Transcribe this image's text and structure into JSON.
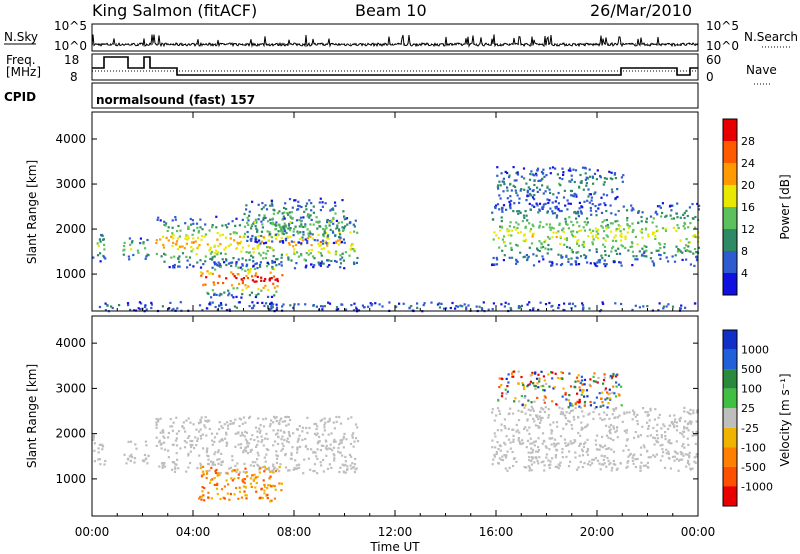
{
  "header": {
    "station": "King Salmon (fitACF)",
    "beam": "Beam 10",
    "date": "26/Mar/2010"
  },
  "summary_panels": {
    "nsky": {
      "left_label": "N.Sky",
      "right_label": "N.Search",
      "left_ticks": [
        "10^5",
        "10^0"
      ],
      "right_ticks": [
        "10^5",
        "10^0"
      ]
    },
    "freq": {
      "left_label_line1": "Freq.",
      "left_label_line2": "[MHz]",
      "left_ticks": [
        "18",
        "8"
      ],
      "right_label": "Nave",
      "right_ticks": [
        "60",
        "0"
      ]
    },
    "cpid": {
      "label": "CPID",
      "value_text": "normalsound (fast) 157"
    }
  },
  "colors": {
    "power_scale": [
      "#1010e0",
      "#2f5bd0",
      "#2e8a64",
      "#5cc05c",
      "#e8e800",
      "#ff9a00",
      "#ff5a00",
      "#e80000"
    ],
    "velocity_scale": [
      "#1030c8",
      "#2060d8",
      "#2a8a3c",
      "#40c040",
      "#bebebe",
      "#f0b400",
      "#ff8000",
      "#ff5000",
      "#e80000"
    ],
    "ground_scatter": "#bebebe"
  },
  "chart_data": [
    {
      "type": "heatmap",
      "name": "power",
      "ylabel": "Slant Range [km]",
      "xlabel": "",
      "x_ticks": [
        "00:00",
        "04:00",
        "08:00",
        "12:00",
        "16:00",
        "20:00",
        "00:00"
      ],
      "x_range_hours": [
        0,
        24
      ],
      "y_ticks": [
        1000,
        2000,
        3000,
        4000
      ],
      "ylim": [
        180,
        4600
      ],
      "colorbar": {
        "label": "Power [dB]",
        "ticks": [
          4,
          8,
          12,
          16,
          20,
          24,
          28
        ],
        "range": [
          0,
          32
        ]
      },
      "scatter_regions": [
        {
          "h0": 0.0,
          "h1": 0.5,
          "r_lo": 1300,
          "r_hi": 2000,
          "level": 1.4
        },
        {
          "h0": 1.2,
          "h1": 2.2,
          "r_lo": 1350,
          "r_hi": 1850,
          "level": 1.5
        },
        {
          "h0": 2.5,
          "h1": 10.5,
          "r_lo": 1150,
          "r_hi": 2300,
          "level": 2.0
        },
        {
          "h0": 6.0,
          "h1": 10.0,
          "r_lo": 1700,
          "r_hi": 2700,
          "level": 1.3
        },
        {
          "h0": 4.2,
          "h1": 7.5,
          "r_lo": 500,
          "r_hi": 1300,
          "level": 3.0
        },
        {
          "h0": 15.8,
          "h1": 24.0,
          "r_lo": 1200,
          "r_hi": 2600,
          "level": 1.6
        },
        {
          "h0": 16.0,
          "h1": 21.0,
          "r_lo": 2600,
          "r_hi": 3400,
          "level": 0.8
        },
        {
          "h0": 0.0,
          "h1": 24.0,
          "r_lo": 200,
          "r_hi": 400,
          "level": 0.5
        }
      ]
    },
    {
      "type": "heatmap",
      "name": "velocity",
      "ylabel": "Slant Range [km]",
      "xlabel": "Time UT",
      "x_ticks": [
        "00:00",
        "04:00",
        "08:00",
        "12:00",
        "16:00",
        "20:00",
        "00:00"
      ],
      "x_range_hours": [
        0,
        24
      ],
      "y_ticks": [
        1000,
        2000,
        3000,
        4000
      ],
      "ylim": [
        180,
        4600
      ],
      "colorbar": {
        "label": "Velocity [m s⁻¹]",
        "ticks": [
          1000,
          500,
          100,
          25,
          -25,
          -100,
          -500,
          -1000
        ]
      },
      "scatter_regions": [
        {
          "h0": 0.0,
          "h1": 0.5,
          "r_lo": 1300,
          "r_hi": 2000,
          "kind": "ground"
        },
        {
          "h0": 1.2,
          "h1": 2.2,
          "r_lo": 1350,
          "r_hi": 1850,
          "kind": "ground"
        },
        {
          "h0": 2.5,
          "h1": 10.5,
          "r_lo": 1150,
          "r_hi": 2400,
          "kind": "ground"
        },
        {
          "h0": 4.2,
          "h1": 7.5,
          "r_lo": 500,
          "r_hi": 1300,
          "kind": "negative"
        },
        {
          "h0": 15.8,
          "h1": 24.0,
          "r_lo": 1200,
          "r_hi": 2600,
          "kind": "ground"
        },
        {
          "h0": 16.0,
          "h1": 21.0,
          "r_lo": 2600,
          "r_hi": 3400,
          "kind": "mixed"
        }
      ]
    }
  ]
}
